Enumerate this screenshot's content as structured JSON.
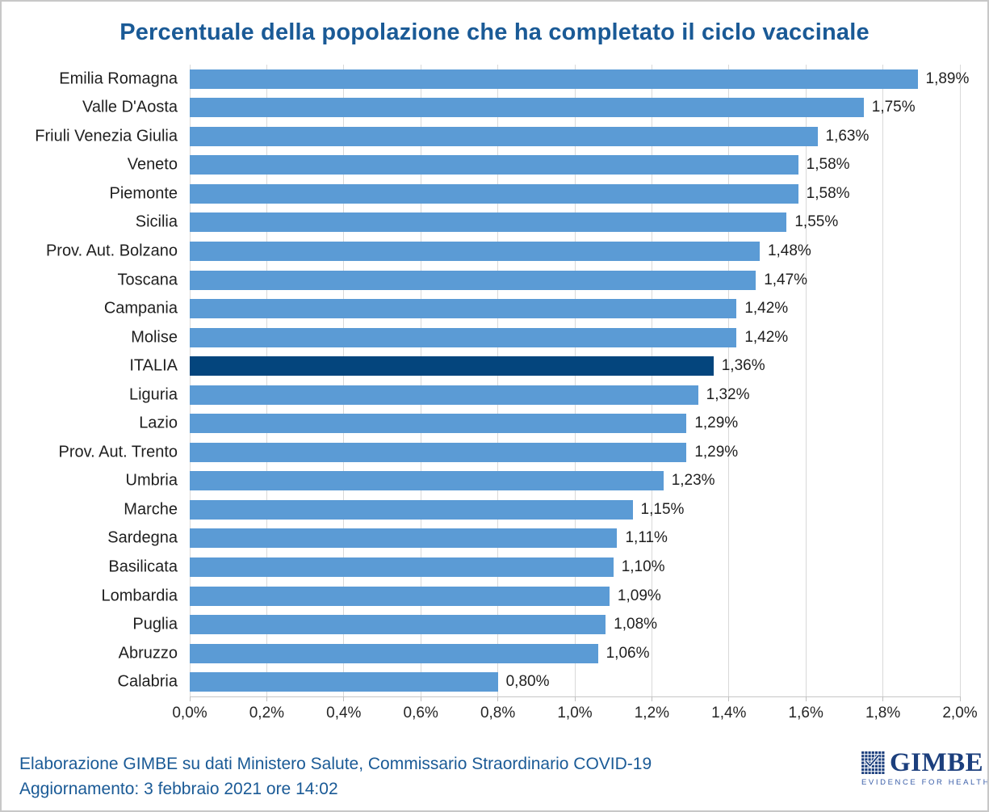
{
  "chart_data": {
    "type": "bar",
    "orientation": "horizontal",
    "title": "Percentuale della popolazione che ha completato il ciclo vaccinale",
    "xlim": [
      0,
      2.0
    ],
    "grid": true,
    "highlight_category": "ITALIA",
    "bar_color": "#5B9BD5",
    "highlight_color": "#04457D",
    "x_ticks": [
      {
        "value": 0.0,
        "label": "0,0%"
      },
      {
        "value": 0.2,
        "label": "0,2%"
      },
      {
        "value": 0.4,
        "label": "0,4%"
      },
      {
        "value": 0.6,
        "label": "0,6%"
      },
      {
        "value": 0.8,
        "label": "0,8%"
      },
      {
        "value": 1.0,
        "label": "1,0%"
      },
      {
        "value": 1.2,
        "label": "1,2%"
      },
      {
        "value": 1.4,
        "label": "1,4%"
      },
      {
        "value": 1.6,
        "label": "1,6%"
      },
      {
        "value": 1.8,
        "label": "1,8%"
      },
      {
        "value": 2.0,
        "label": "2,0%"
      }
    ],
    "rows": [
      {
        "category": "Emilia Romagna",
        "value": 1.89,
        "label": "1,89%",
        "highlight": false
      },
      {
        "category": "Valle D'Aosta",
        "value": 1.75,
        "label": "1,75%",
        "highlight": false
      },
      {
        "category": "Friuli Venezia Giulia",
        "value": 1.63,
        "label": "1,63%",
        "highlight": false
      },
      {
        "category": "Veneto",
        "value": 1.58,
        "label": "1,58%",
        "highlight": false
      },
      {
        "category": "Piemonte",
        "value": 1.58,
        "label": "1,58%",
        "highlight": false
      },
      {
        "category": "Sicilia",
        "value": 1.55,
        "label": "1,55%",
        "highlight": false
      },
      {
        "category": "Prov. Aut. Bolzano",
        "value": 1.48,
        "label": "1,48%",
        "highlight": false
      },
      {
        "category": "Toscana",
        "value": 1.47,
        "label": "1,47%",
        "highlight": false
      },
      {
        "category": "Campania",
        "value": 1.42,
        "label": "1,42%",
        "highlight": false
      },
      {
        "category": "Molise",
        "value": 1.42,
        "label": "1,42%",
        "highlight": false
      },
      {
        "category": "ITALIA",
        "value": 1.36,
        "label": "1,36%",
        "highlight": true
      },
      {
        "category": "Liguria",
        "value": 1.32,
        "label": "1,32%",
        "highlight": false
      },
      {
        "category": "Lazio",
        "value": 1.29,
        "label": "1,29%",
        "highlight": false
      },
      {
        "category": "Prov. Aut. Trento",
        "value": 1.29,
        "label": "1,29%",
        "highlight": false
      },
      {
        "category": "Umbria",
        "value": 1.23,
        "label": "1,23%",
        "highlight": false
      },
      {
        "category": "Marche",
        "value": 1.15,
        "label": "1,15%",
        "highlight": false
      },
      {
        "category": "Sardegna",
        "value": 1.11,
        "label": "1,11%",
        "highlight": false
      },
      {
        "category": "Basilicata",
        "value": 1.1,
        "label": "1,10%",
        "highlight": false
      },
      {
        "category": "Lombardia",
        "value": 1.09,
        "label": "1,09%",
        "highlight": false
      },
      {
        "category": "Puglia",
        "value": 1.08,
        "label": "1,08%",
        "highlight": false
      },
      {
        "category": "Abruzzo",
        "value": 1.06,
        "label": "1,06%",
        "highlight": false
      },
      {
        "category": "Calabria",
        "value": 0.8,
        "label": "0,80%",
        "highlight": false
      }
    ]
  },
  "footer": {
    "line1": "Elaborazione GIMBE su dati Ministero Salute, Commissario Straordinario COVID-19",
    "line2": "Aggiornamento: 3 febbraio 2021 ore 14:02"
  },
  "logo": {
    "name": "GIMBE",
    "tagline": "EVIDENCE FOR HEALTH",
    "color": "#1C3F7D"
  },
  "colors": {
    "title": "#1A5A96",
    "footer": "#1A5A96",
    "gridline": "#D9D9D9",
    "axis_text": "#262626",
    "label_text": "#1F1F1F"
  }
}
